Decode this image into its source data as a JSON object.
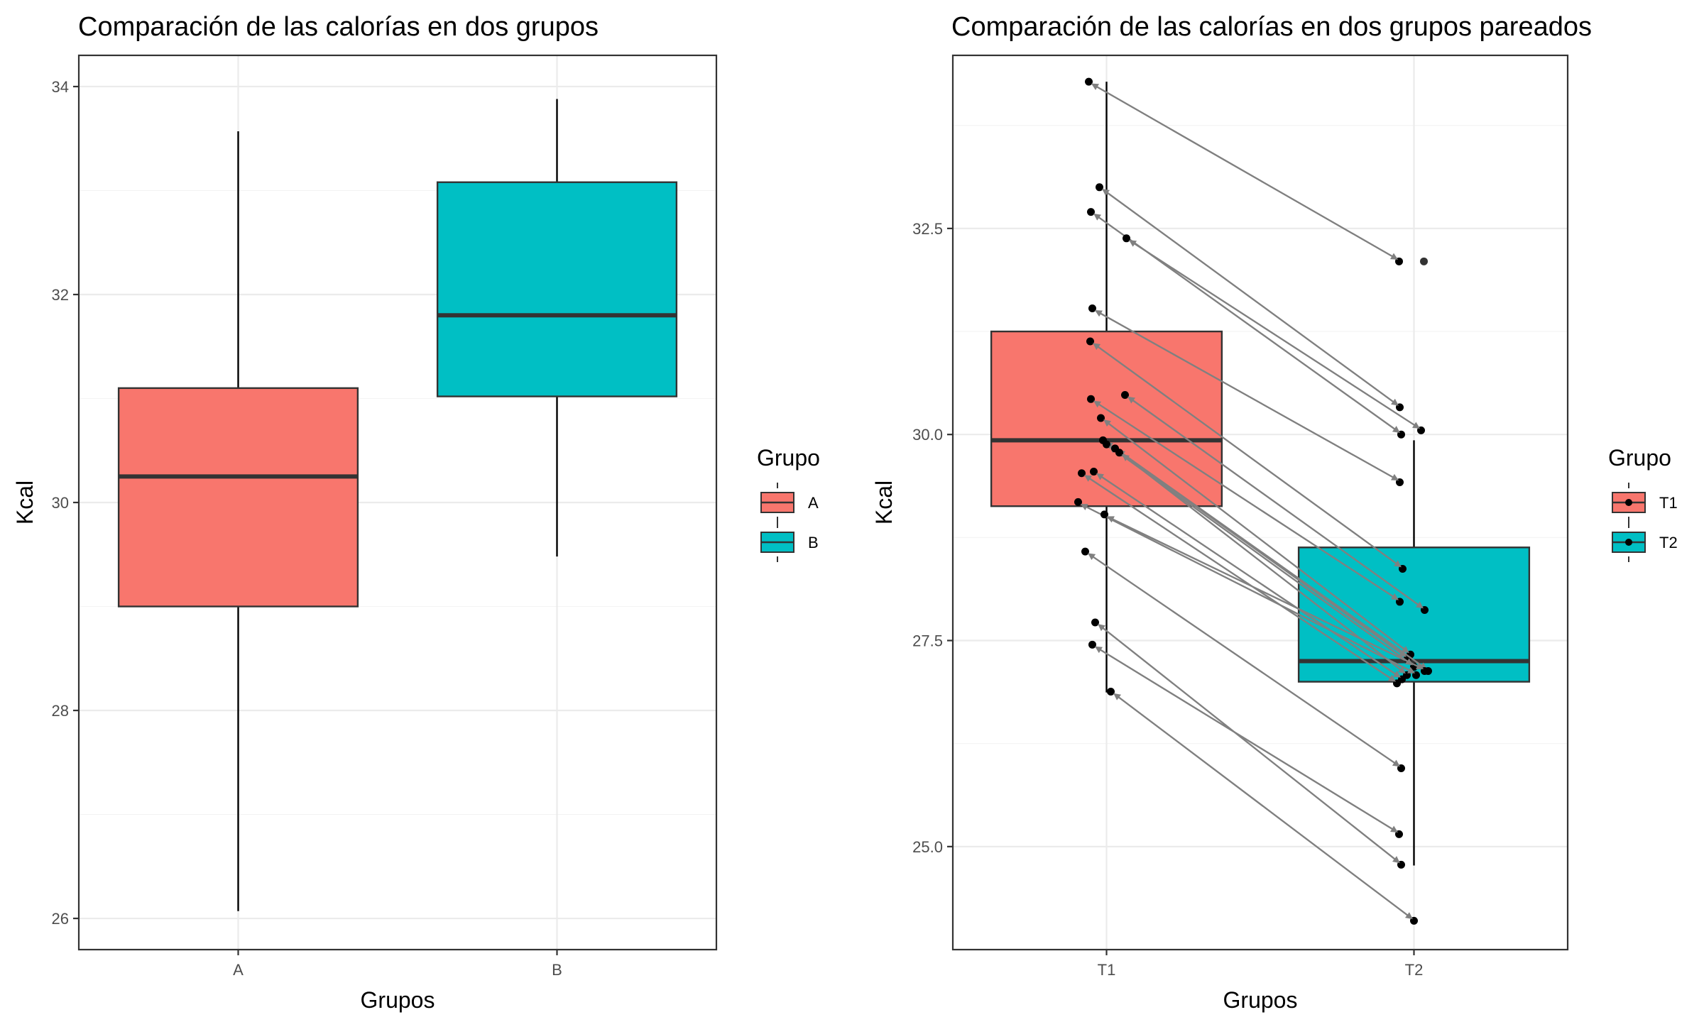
{
  "chart_data": [
    {
      "type": "box",
      "title": "Comparación de las calorías en dos grupos",
      "xlabel": "Grupos",
      "ylabel": "Kcal",
      "ylim": [
        25.7,
        34.3
      ],
      "yticks": [
        "26",
        "28",
        "30",
        "32",
        "34"
      ],
      "categories": [
        "A",
        "B"
      ],
      "grid": true,
      "legend": {
        "title": "Grupo",
        "position": "right",
        "labels": [
          "A",
          "B"
        ]
      },
      "colors": {
        "A": "#F8766D",
        "B": "#00BFC4"
      },
      "boxes": [
        {
          "name": "A",
          "min": 26.07,
          "q1": 29.0,
          "median": 30.25,
          "q3": 31.1,
          "max": 33.57
        },
        {
          "name": "B",
          "min": 29.48,
          "q1": 31.02,
          "median": 31.8,
          "q3": 33.08,
          "max": 33.88
        }
      ]
    },
    {
      "type": "box",
      "title": "Comparación de las calorías en dos grupos pareados",
      "xlabel": "Grupos",
      "ylabel": "Kcal",
      "ylim": [
        23.75,
        34.6
      ],
      "yticks": [
        "25.0",
        "27.5",
        "30.0",
        "32.5"
      ],
      "categories": [
        "T1",
        "T2"
      ],
      "grid": true,
      "legend": {
        "title": "Grupo",
        "position": "right",
        "labels": [
          "T1",
          "T2"
        ]
      },
      "colors": {
        "T1": "#F8766D",
        "T2": "#00BFC4"
      },
      "boxes": [
        {
          "name": "T1",
          "min": 26.87,
          "q1": 29.13,
          "median": 29.93,
          "q3": 31.25,
          "max": 34.28
        },
        {
          "name": "T2",
          "min": 24.77,
          "q1": 27.0,
          "median": 27.25,
          "q3": 28.63,
          "max": 29.93
        }
      ],
      "pairs": [
        {
          "t1": 34.28,
          "t2": 32.1
        },
        {
          "t1": 33.0,
          "t2": 30.33
        },
        {
          "t1": 32.7,
          "t2": 30.0
        },
        {
          "t1": 32.38,
          "t2": 30.05
        },
        {
          "t1": 31.53,
          "t2": 29.42
        },
        {
          "t1": 31.13,
          "t2": 28.37
        },
        {
          "t1": 30.43,
          "t2": 27.97
        },
        {
          "t1": 30.48,
          "t2": 27.87
        },
        {
          "t1": 30.2,
          "t2": 27.33
        },
        {
          "t1": 29.93,
          "t2": 27.28
        },
        {
          "t1": 29.88,
          "t2": 27.18
        },
        {
          "t1": 29.83,
          "t2": 27.13
        },
        {
          "t1": 29.78,
          "t2": 27.08
        },
        {
          "t1": 29.55,
          "t2": 27.03
        },
        {
          "t1": 29.53,
          "t2": 26.98
        },
        {
          "t1": 29.18,
          "t2": 27.08
        },
        {
          "t1": 29.03,
          "t2": 27.13
        },
        {
          "t1": 28.58,
          "t2": 25.95
        },
        {
          "t1": 27.72,
          "t2": 24.78
        },
        {
          "t1": 27.45,
          "t2": 25.15
        },
        {
          "t1": 26.88,
          "t2": 24.1
        }
      ],
      "extra_points": {
        "T2": [
          32.1
        ]
      }
    }
  ]
}
